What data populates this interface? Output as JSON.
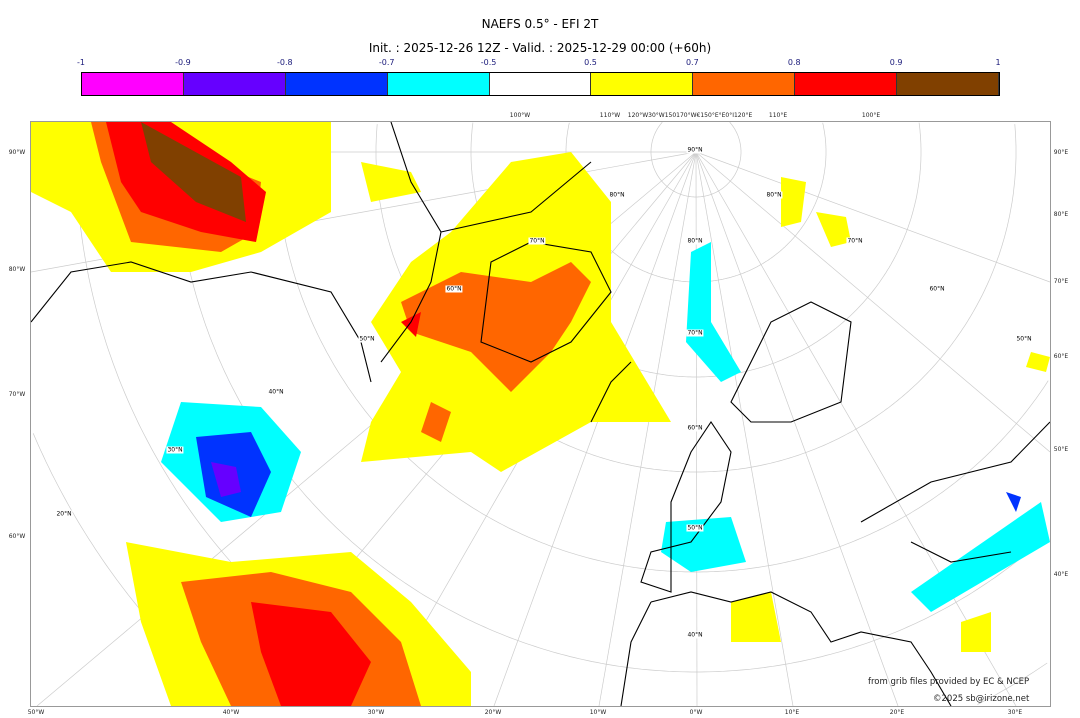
{
  "title": "NAEFS 0.5° - EFI 2T",
  "subtitle": "Init. : 2025-12-26 12Z - Valid. : 2025-12-29 00:00 (+60h)",
  "colorbar": {
    "ticks": [
      "-1",
      "-0.9",
      "-0.8",
      "-0.7",
      "-0.5",
      "0.5",
      "0.7",
      "0.8",
      "0.9",
      "1"
    ],
    "colors": [
      "#ff00ff",
      "#6600ff",
      "#0033ff",
      "#00ffff",
      "#ffffff",
      "#ffff00",
      "#ff6600",
      "#ff0000",
      "#804000"
    ]
  },
  "axes": {
    "top": [
      "100°W",
      "110°W",
      "120°W30°W150170°W€150°E°E0°I120°E",
      "110°E",
      "100°E"
    ],
    "left": [
      "90°W",
      "80°W",
      "70°W",
      "60°W"
    ],
    "right": [
      "90°E",
      "80°E",
      "70°E",
      "60°E",
      "50°E",
      "40°E"
    ],
    "bottom": [
      "50°W",
      "40°W",
      "30°W",
      "20°W",
      "10°W",
      "0°W",
      "10°E",
      "20°E",
      "30°E"
    ],
    "interior": [
      "90°N",
      "80°N",
      "70°N",
      "60°N",
      "50°N",
      "40°N",
      "30°N",
      "20°N",
      "80°N",
      "70°N",
      "60°N",
      "50°N",
      "40°N",
      "80°N",
      "70°N",
      "60°N",
      "50°N"
    ]
  },
  "credits": [
    "from grib files provided by EC & NCEP",
    "©2025 sb@irizone.net"
  ]
}
